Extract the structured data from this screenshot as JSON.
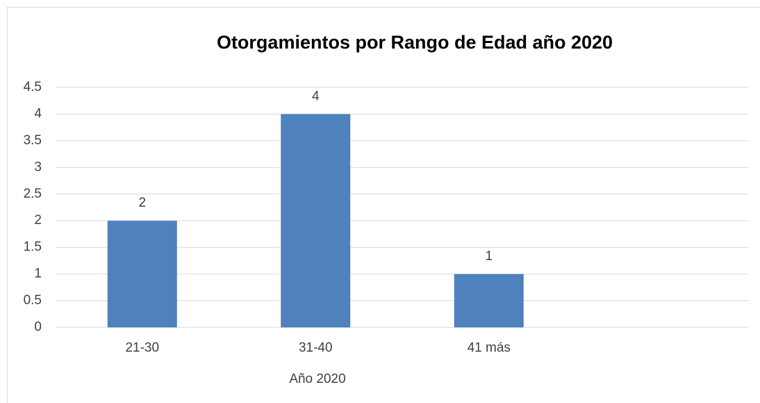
{
  "chart_data": {
    "type": "bar",
    "title": "Otorgamientos por Rango de Edad año 2020",
    "categories": [
      "21-30",
      "31-40",
      "41 más",
      null
    ],
    "values": [
      2,
      4,
      1,
      null
    ],
    "color": "#4f81bd",
    "x_label": "Año 2020",
    "ylim": [
      0,
      4.5
    ],
    "yticks": [
      0,
      0.5,
      1,
      1.5,
      2,
      2.5,
      3,
      3.5,
      4,
      4.5
    ],
    "grid": true
  }
}
